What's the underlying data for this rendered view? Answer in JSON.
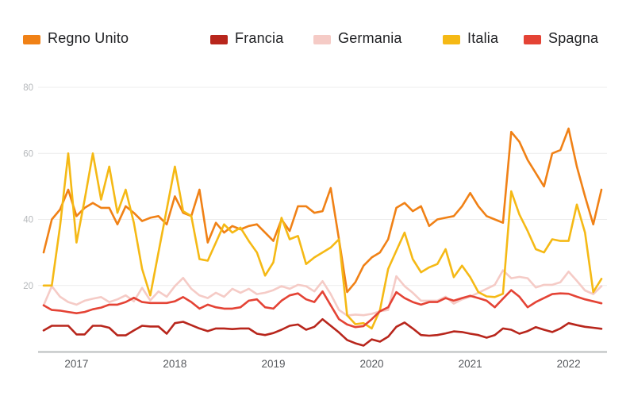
{
  "colors": {
    "grid": "#ececec",
    "axis_line": "#b9bcbe",
    "y_label": "#b5b8bb",
    "x_label": "#55585c",
    "legend_text": "#202124"
  },
  "chart_data": {
    "type": "line",
    "title": "",
    "legend_position": "top",
    "grid": "horizontal",
    "x_interval": "monthly",
    "x_start": "2016-09",
    "x_end": "2022-05",
    "x_tick_labels": [
      "2017",
      "2018",
      "2019",
      "2020",
      "2021",
      "2022"
    ],
    "y_ticks": [
      20,
      40,
      60,
      80
    ],
    "ylim": [
      0,
      85
    ],
    "months": [
      "2016-09",
      "2016-10",
      "2016-11",
      "2016-12",
      "2017-01",
      "2017-02",
      "2017-03",
      "2017-04",
      "2017-05",
      "2017-06",
      "2017-07",
      "2017-08",
      "2017-09",
      "2017-10",
      "2017-11",
      "2017-12",
      "2018-01",
      "2018-02",
      "2018-03",
      "2018-04",
      "2018-05",
      "2018-06",
      "2018-07",
      "2018-08",
      "2018-09",
      "2018-10",
      "2018-11",
      "2018-12",
      "2019-01",
      "2019-02",
      "2019-03",
      "2019-04",
      "2019-05",
      "2019-06",
      "2019-07",
      "2019-08",
      "2019-09",
      "2019-10",
      "2019-11",
      "2019-12",
      "2020-01",
      "2020-02",
      "2020-03",
      "2020-04",
      "2020-05",
      "2020-06",
      "2020-07",
      "2020-08",
      "2020-09",
      "2020-10",
      "2020-11",
      "2020-12",
      "2021-01",
      "2021-02",
      "2021-03",
      "2021-04",
      "2021-05",
      "2021-06",
      "2021-07",
      "2021-08",
      "2021-09",
      "2021-10",
      "2021-11",
      "2021-12",
      "2022-01",
      "2022-02",
      "2022-03",
      "2022-04",
      "2022-05"
    ],
    "series": [
      {
        "name": "Regno Unito",
        "color": "#f08116",
        "values": [
          30,
          40,
          43,
          49,
          41,
          43.5,
          45,
          43.5,
          43.5,
          38.5,
          44,
          42,
          39.5,
          40.5,
          41,
          38.5,
          47,
          42,
          41,
          49,
          33,
          39,
          36,
          38,
          37,
          38,
          38.5,
          36,
          33.5,
          40,
          36.5,
          44,
          44,
          42,
          42.5,
          49.5,
          34,
          18,
          21,
          26,
          28.5,
          30,
          34,
          43.5,
          45,
          42.5,
          44,
          38,
          40,
          40.5,
          41,
          44,
          48,
          44,
          41,
          40,
          39,
          66.5,
          63.5,
          58,
          54,
          50,
          60,
          61,
          67.5,
          56,
          47,
          38.5,
          49
        ]
      },
      {
        "name": "Francia",
        "color": "#b8261c",
        "values": [
          6.4,
          7.8,
          7.8,
          7.8,
          5.2,
          5.2,
          7.8,
          7.8,
          7.2,
          4.9,
          4.9,
          6.4,
          7.8,
          7.6,
          7.6,
          5.4,
          8.6,
          9,
          8,
          7,
          6.2,
          7,
          7,
          6.8,
          7,
          7,
          5.4,
          5,
          5.6,
          6.6,
          7.8,
          8.2,
          6.6,
          7.5,
          9.8,
          7.8,
          5.8,
          3.5,
          2.5,
          1.8,
          3.7,
          3,
          4.5,
          7.5,
          8.8,
          7,
          5,
          4.8,
          5,
          5.5,
          6.1,
          5.9,
          5.4,
          5,
          4.2,
          5,
          7,
          6.6,
          5.4,
          6.2,
          7.4,
          6.6,
          5.9,
          7,
          8.6,
          8,
          7.5,
          7.2,
          6.9
        ]
      },
      {
        "name": "Germania",
        "color": "#f5cbc6",
        "values": [
          14,
          19.8,
          16.6,
          15,
          14.2,
          15.4,
          16,
          16.5,
          15,
          15.8,
          17,
          15.2,
          19.3,
          15.5,
          18.2,
          16.6,
          19.8,
          22.3,
          19,
          17,
          16.2,
          17.8,
          16.6,
          19,
          17.8,
          19,
          17.4,
          17.8,
          18.6,
          19.8,
          19,
          20.2,
          19.8,
          18.2,
          21.3,
          17.4,
          12.6,
          10.9,
          11.2,
          11,
          11.4,
          12.2,
          12.6,
          22.8,
          19.8,
          17.8,
          15.4,
          15.4,
          15.4,
          16.6,
          14.5,
          15.8,
          16.6,
          17.8,
          19,
          20.2,
          24.6,
          22.2,
          22.6,
          22.2,
          19.4,
          20.2,
          20.2,
          21,
          24.2,
          21.4,
          18.5,
          17.4,
          19.8
        ]
      },
      {
        "name": "Italia",
        "color": "#f5b915",
        "values": [
          20,
          20,
          38,
          60,
          33,
          46,
          60,
          46,
          56,
          42,
          49,
          39,
          25,
          17,
          30,
          43,
          56,
          42.5,
          41,
          28,
          27.5,
          33,
          38.5,
          36,
          37.5,
          33.5,
          30,
          23,
          27,
          40.5,
          34,
          35,
          26.5,
          28.5,
          30,
          31.5,
          34,
          11,
          8.3,
          8.6,
          7,
          12.6,
          25,
          30.5,
          36,
          28,
          24,
          25.5,
          26.5,
          31,
          22.5,
          26,
          22.5,
          18,
          16.7,
          16.5,
          17.5,
          48.5,
          41.5,
          36.5,
          31,
          30,
          34,
          33.5,
          33.5,
          44.5,
          36,
          18,
          22
        ]
      },
      {
        "name": "Spagna",
        "color": "#e44335",
        "values": [
          14,
          12.6,
          12.4,
          12,
          11.6,
          12,
          12.8,
          13.3,
          14.2,
          14.2,
          15,
          16.3,
          15,
          14.7,
          14.7,
          14.7,
          15.2,
          16.5,
          15,
          13,
          14.2,
          13.4,
          13,
          13,
          13.4,
          15.4,
          15.8,
          13.4,
          13,
          15.4,
          17,
          17.6,
          15.8,
          15,
          18.2,
          14,
          9.8,
          8.2,
          7.4,
          7.7,
          9.8,
          12.2,
          13.4,
          18,
          16.2,
          15,
          14.2,
          15,
          15,
          16.2,
          15.4,
          16.2,
          16.9,
          16.2,
          15.4,
          13.4,
          16,
          18.6,
          16.6,
          13.4,
          15,
          16.2,
          17.4,
          17.6,
          17.5,
          16.6,
          15.8,
          15.2,
          14.6
        ]
      }
    ]
  }
}
